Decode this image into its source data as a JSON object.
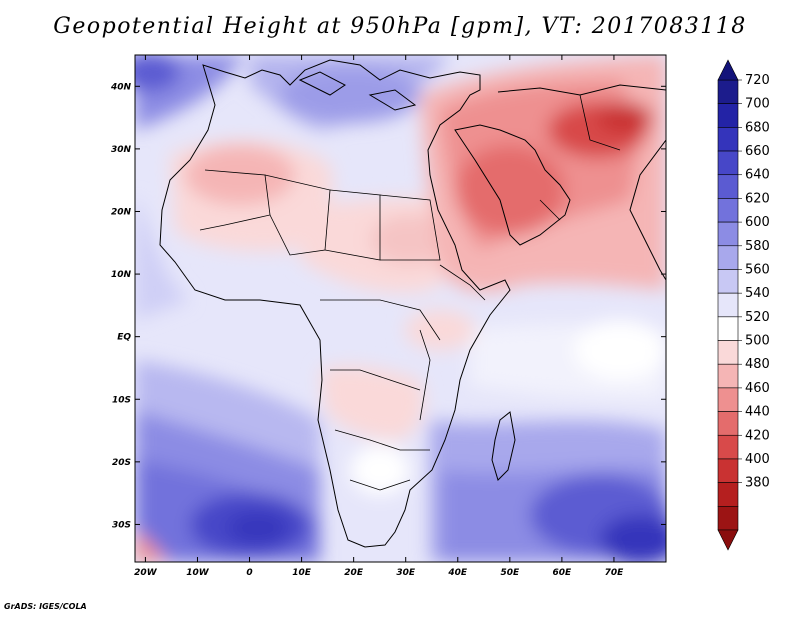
{
  "title": "Geopotential Height at 950hPa [gpm], VT: 2017083118",
  "credit": "GrADS: IGES/COLA",
  "map": {
    "lon_range": [
      -22,
      80
    ],
    "lat_range": [
      -36,
      45
    ],
    "lon_ticks": [
      "20W",
      "10W",
      "0",
      "10E",
      "20E",
      "30E",
      "40E",
      "50E",
      "60E",
      "70E"
    ],
    "lat_ticks": [
      "40N",
      "30N",
      "20N",
      "10N",
      "EQ",
      "10S",
      "20S",
      "30S"
    ]
  },
  "colorbar": {
    "labels": [
      "720",
      "700",
      "680",
      "660",
      "640",
      "620",
      "600",
      "580",
      "560",
      "540",
      "520",
      "500",
      "480",
      "460",
      "440",
      "420",
      "400",
      "380"
    ],
    "colors": [
      "#1c1c8c",
      "#2323a6",
      "#3434bb",
      "#4747c8",
      "#5b5bd2",
      "#7272dc",
      "#8c8ce4",
      "#a8a8ec",
      "#c8c8f4",
      "#e6e6fa",
      "#ffffff",
      "#fad9d9",
      "#f5b5b5",
      "#ee9090",
      "#e46c6c",
      "#d84a4a",
      "#c93232",
      "#b51f1f",
      "#9c1414"
    ]
  }
}
